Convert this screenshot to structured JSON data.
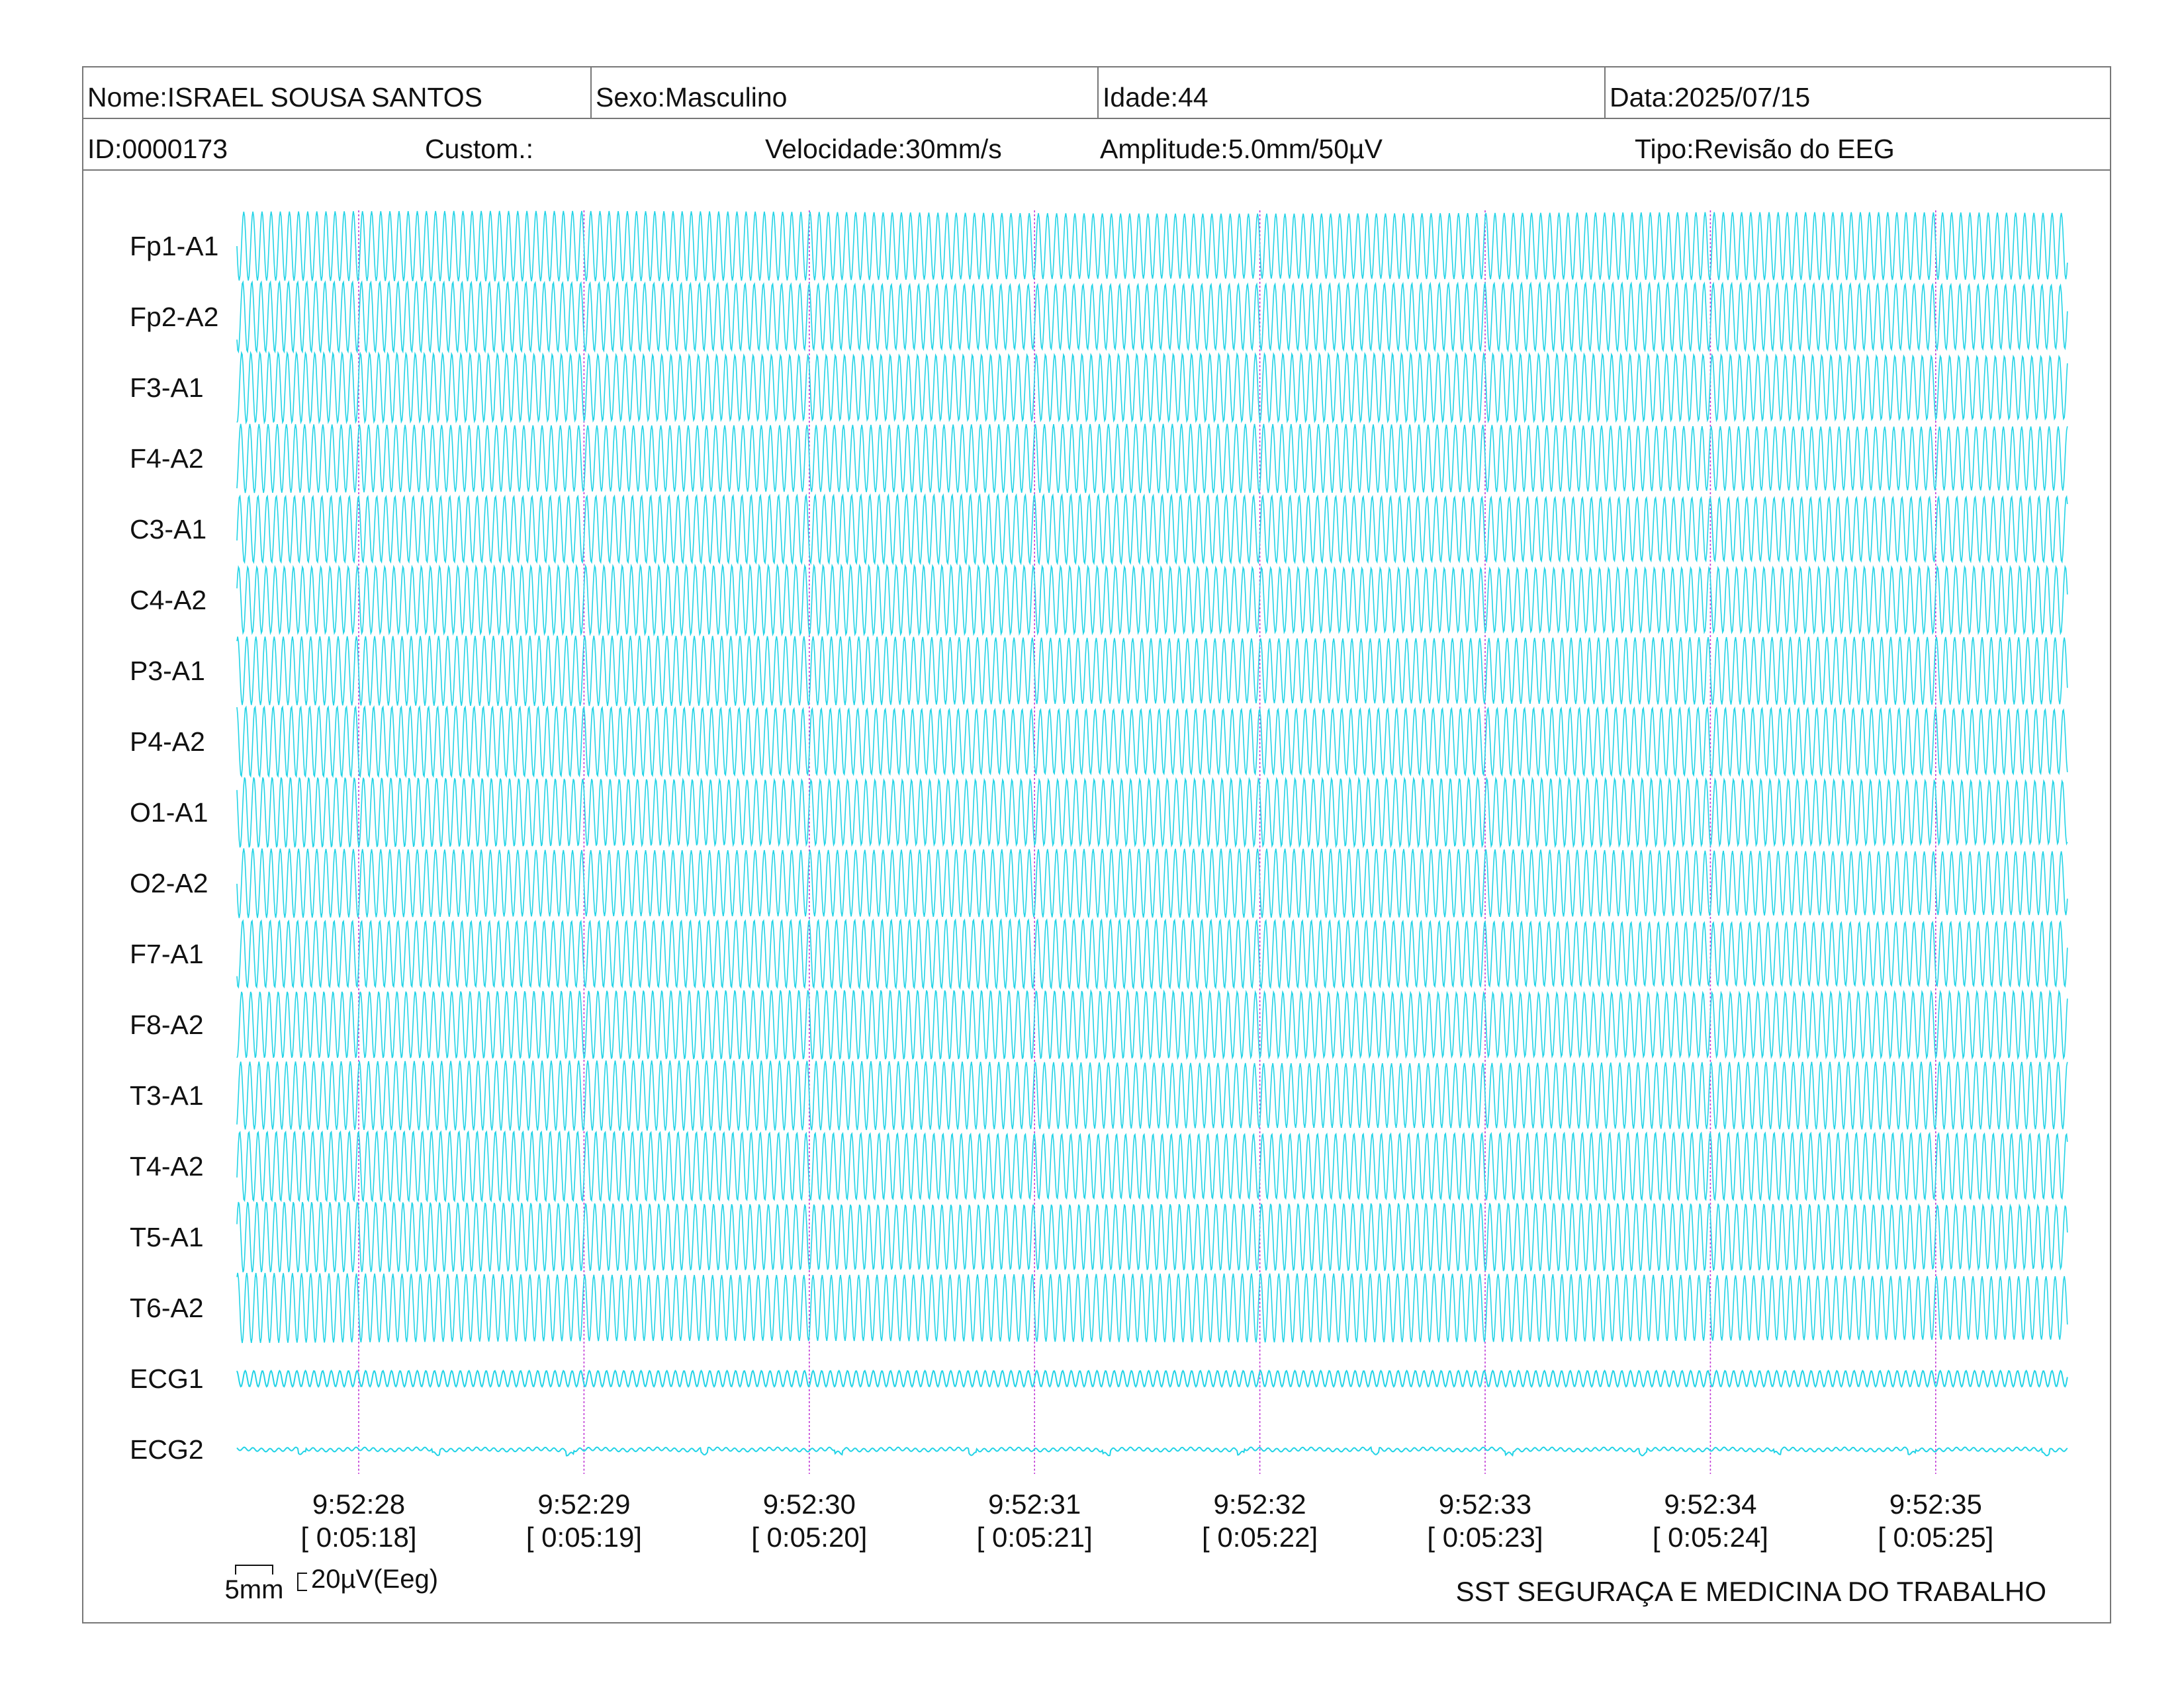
{
  "header": {
    "name": "Nome:ISRAEL SOUSA SANTOS",
    "sex": "Sexo:Masculino",
    "age": "Idade:44",
    "date": "Data:2025/07/15",
    "id": "ID:0000173",
    "custom": "Custom.:",
    "speed": "Velocidade:30mm/s",
    "amplitude": "Amplitude:5.0mm/50µV",
    "type": "Tipo:Revisão do EEG"
  },
  "scale": {
    "time_label": "5mm",
    "amp_label": "20µV(Eeg)"
  },
  "footer": {
    "clinic": "SST SEGURAÇA E MEDICINA DO TRABALHO"
  },
  "colors": {
    "trace": "#22d3e6",
    "marker": "#c23ad6",
    "border": "#777777"
  },
  "chart_data": {
    "type": "line",
    "channels": [
      "Fp1-A1",
      "Fp2-A2",
      "F3-A1",
      "F4-A2",
      "C3-A1",
      "C4-A2",
      "P3-A1",
      "P4-A2",
      "O1-A1",
      "O2-A2",
      "F7-A1",
      "F8-A2",
      "T3-A1",
      "T4-A2",
      "T5-A1",
      "T6-A2",
      "ECG1",
      "ECG2"
    ],
    "time_ticks": [
      {
        "clock": "9:52:28",
        "elapsed": "[ 0:05:18]"
      },
      {
        "clock": "9:52:29",
        "elapsed": "[ 0:05:19]"
      },
      {
        "clock": "9:52:30",
        "elapsed": "[ 0:05:20]"
      },
      {
        "clock": "9:52:31",
        "elapsed": "[ 0:05:21]"
      },
      {
        "clock": "9:52:32",
        "elapsed": "[ 0:05:22]"
      },
      {
        "clock": "9:52:33",
        "elapsed": "[ 0:05:23]"
      },
      {
        "clock": "9:52:34",
        "elapsed": "[ 0:05:24]"
      },
      {
        "clock": "9:52:35",
        "elapsed": "[ 0:05:25]"
      }
    ],
    "eeg_waveform": "dense ~50Hz sinusoidal artifact on all EEG channels",
    "grid": false
  }
}
